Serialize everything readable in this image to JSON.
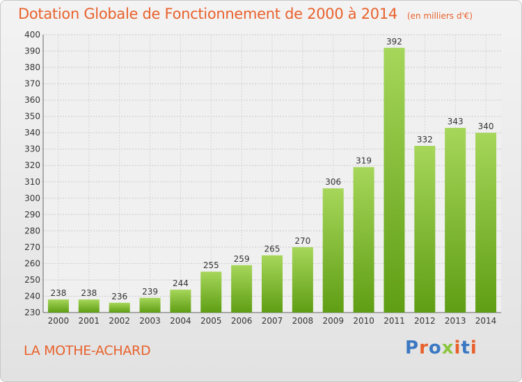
{
  "header": {
    "title": "Dotation Globale de Fonctionnement de 2000 à 2014",
    "subtitle": "(en milliers d'€)"
  },
  "footer": {
    "city": "LA MOTHE-ACHARD",
    "logo": "Proxiti"
  },
  "colors": {
    "title": "#e8612c",
    "bar_top": "#a6d65a",
    "bar_bottom": "#5f9e14",
    "logo_letters": [
      "#3a78c3",
      "#e8612c",
      "#3a78c3",
      "#8cc63f",
      "#e8612c",
      "#3a78c3",
      "#e8612c"
    ]
  },
  "chart_data": {
    "type": "bar",
    "categories": [
      "2000",
      "2001",
      "2002",
      "2003",
      "2004",
      "2005",
      "2006",
      "2007",
      "2008",
      "2009",
      "2010",
      "2011",
      "2012",
      "2013",
      "2014"
    ],
    "values": [
      238,
      238,
      236,
      239,
      244,
      255,
      259,
      265,
      270,
      306,
      319,
      392,
      332,
      343,
      340
    ],
    "ylim": [
      230,
      400
    ],
    "yticks": [
      230,
      240,
      250,
      260,
      270,
      280,
      290,
      300,
      310,
      320,
      330,
      340,
      350,
      360,
      370,
      380,
      390,
      400
    ],
    "grid": true,
    "legend": "none"
  }
}
